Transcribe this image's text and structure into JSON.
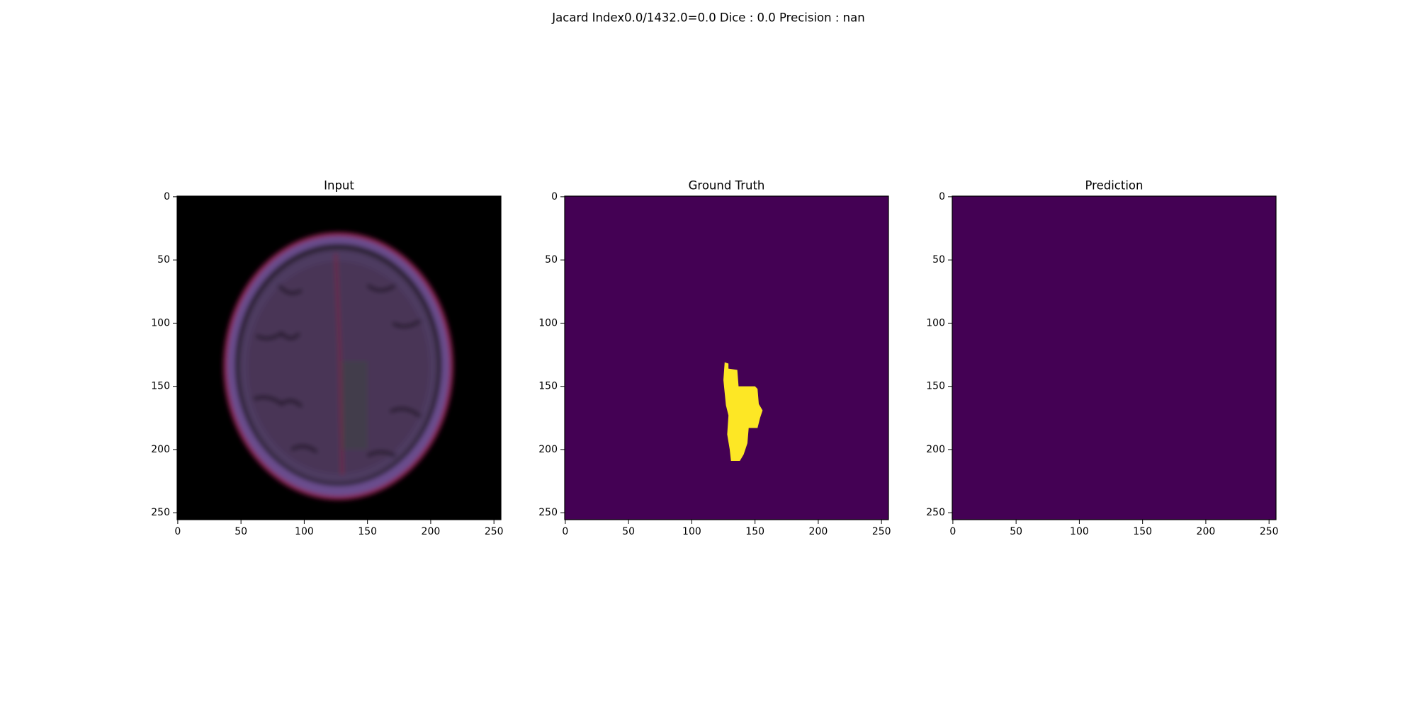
{
  "suptitle": "Jacard Index0.0/1432.0=0.0 Dice : 0.0 Precision : nan",
  "chart_data": [
    {
      "type": "image",
      "title": "Input",
      "xlim": [
        -0.5,
        255.5
      ],
      "ylim": [
        255.5,
        -0.5
      ],
      "xticks": [
        0,
        50,
        100,
        150,
        200,
        250
      ],
      "yticks": [
        0,
        50,
        100,
        150,
        200,
        250
      ]
    },
    {
      "type": "image",
      "title": "Ground Truth",
      "xlim": [
        -0.5,
        255.5
      ],
      "ylim": [
        255.5,
        -0.5
      ],
      "xticks": [
        0,
        50,
        100,
        150,
        200,
        250
      ],
      "yticks": [
        0,
        50,
        100,
        150,
        200,
        250
      ]
    },
    {
      "type": "image",
      "title": "Prediction",
      "xlim": [
        -0.5,
        255.5
      ],
      "ylim": [
        255.5,
        -0.5
      ],
      "xticks": [
        0,
        50,
        100,
        150,
        200,
        250
      ],
      "yticks": [
        0,
        50,
        100,
        150,
        200,
        250
      ]
    }
  ]
}
